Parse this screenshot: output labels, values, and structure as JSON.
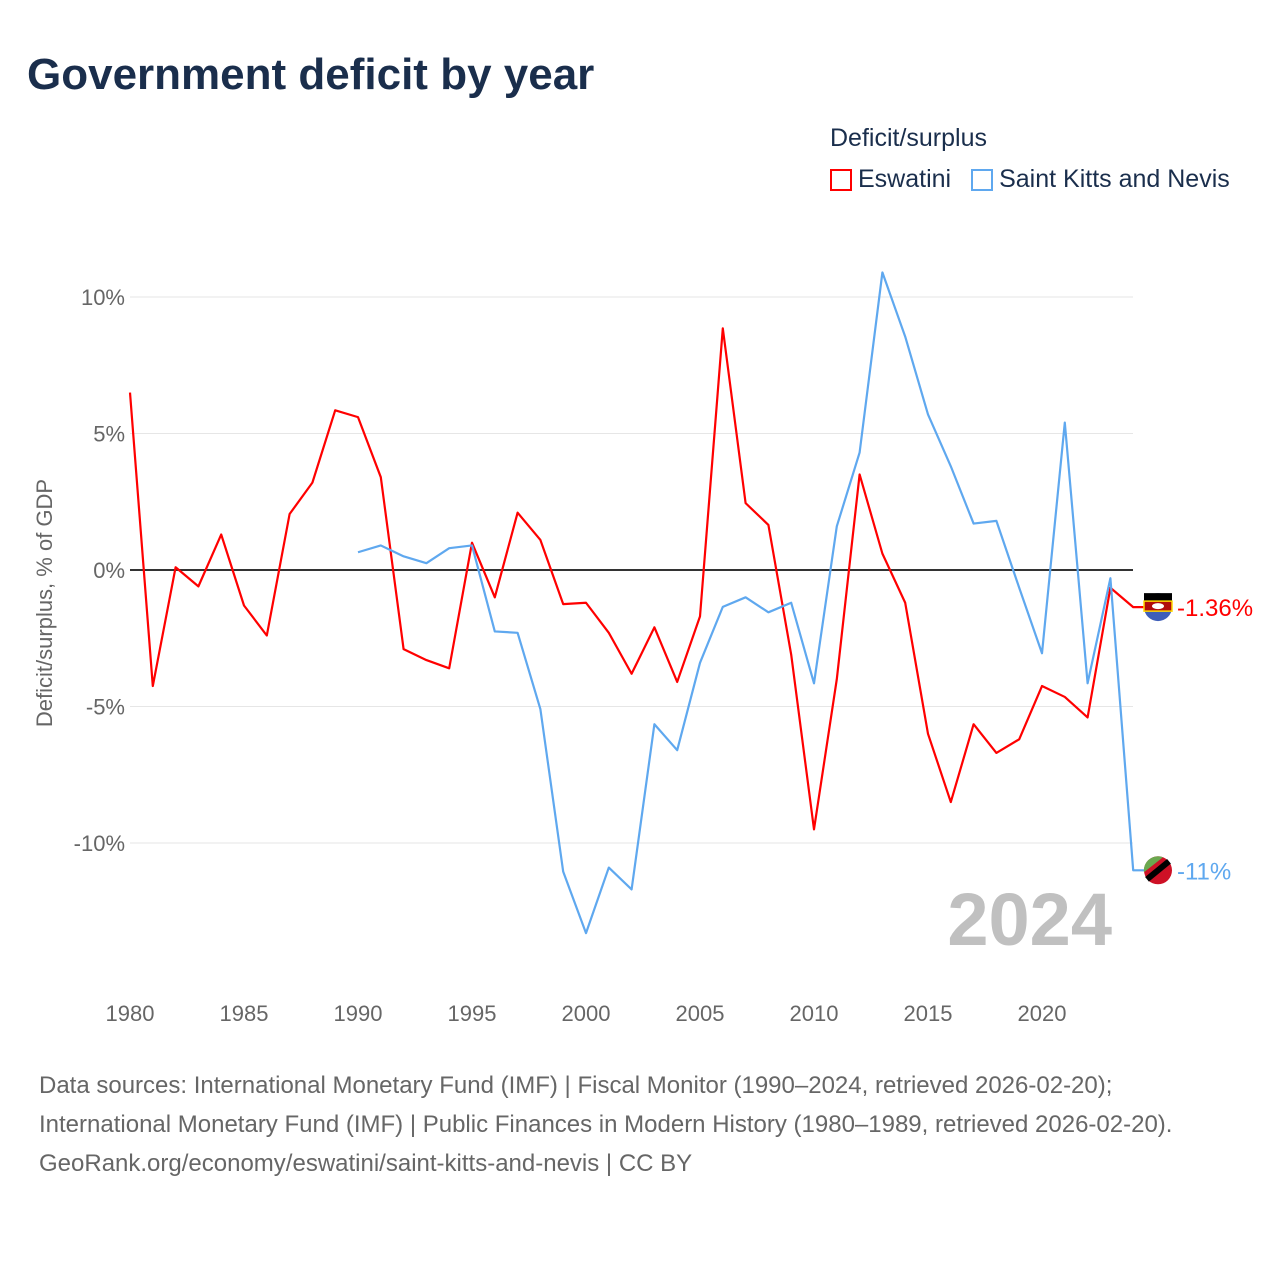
{
  "title": "Government deficit by year",
  "legend_title": "Deficit/surplus",
  "year_watermark": "2024",
  "footer": {
    "sources": "Data sources: International Monetary Fund (IMF) | Fiscal Monitor (1990–2024, retrieved 2026-02-20); International Monetary Fund (IMF) | Public Finances in Modern History (1980–1989, retrieved 2026-02-20).",
    "credit": "GeoRank.org/economy/eswatini/saint-kitts-and-nevis | CC BY"
  },
  "chart_data": {
    "type": "line",
    "title": "Government deficit by year",
    "ylabel": "Deficit/surplus, % of GDP",
    "xlabel": "",
    "xlim": [
      1980,
      2024
    ],
    "ylim": [
      -14,
      11
    ],
    "yticks": [
      10,
      5,
      0,
      -5,
      -10
    ],
    "ytick_labels": [
      "10%",
      "5%",
      "0%",
      "-5%",
      "-10%"
    ],
    "xticks": [
      1980,
      1985,
      1990,
      1995,
      2000,
      2005,
      2010,
      2015,
      2020
    ],
    "grid": true,
    "legend_position": "top-right",
    "series": [
      {
        "name": "Eswatini",
        "color": "#ff0000",
        "end_label": "-1.36%",
        "start_year": 1980,
        "values": [
          6.5,
          -4.25,
          0.1,
          -0.6,
          1.3,
          -1.3,
          -2.4,
          2.05,
          3.2,
          5.85,
          5.6,
          3.4,
          -2.9,
          -3.3,
          -3.6,
          1.0,
          -1.0,
          2.1,
          1.1,
          -1.25,
          -1.2,
          -2.3,
          -3.8,
          -2.1,
          -4.1,
          -1.7,
          8.85,
          2.45,
          1.65,
          -3.1,
          -9.5,
          -4.0,
          3.5,
          0.6,
          -1.2,
          -6.0,
          -8.5,
          -5.65,
          -6.7,
          -6.2,
          -4.25,
          -4.65,
          -5.4,
          -0.65,
          -1.36
        ]
      },
      {
        "name": "Saint Kitts and Nevis",
        "color": "#5fa8ef",
        "end_label": "-11%",
        "start_year": 1990,
        "values": [
          0.65,
          0.9,
          0.5,
          0.25,
          0.8,
          0.9,
          -2.25,
          -2.3,
          -5.1,
          -11.05,
          -13.3,
          -10.9,
          -11.7,
          -5.65,
          -6.6,
          -3.4,
          -1.35,
          -1.0,
          -1.55,
          -1.2,
          -4.15,
          1.6,
          4.3,
          10.9,
          8.55,
          5.7,
          3.8,
          1.7,
          1.8,
          -0.65,
          -3.05,
          5.4,
          -4.15,
          -0.3,
          -11.0
        ]
      }
    ]
  }
}
